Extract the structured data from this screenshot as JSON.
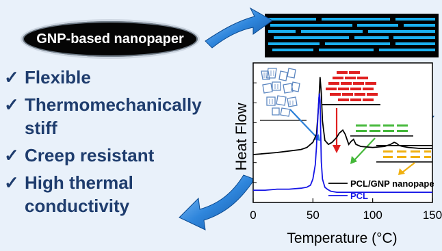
{
  "banner": {
    "title": "GNP-based nanopaper"
  },
  "features": [
    {
      "check_icon": "check-icon",
      "text": "Flexible"
    },
    {
      "check_icon": "check-icon",
      "text": "Thermomechanically\nstiff"
    },
    {
      "check_icon": "check-icon",
      "text": "Creep resistant"
    },
    {
      "check_icon": "check-icon",
      "text": "High thermal\nconductivity"
    }
  ],
  "colors": {
    "text_blue": "#1f3d6e",
    "arrow_blue": "#2a7fd8",
    "pcl_line": "#1515e6",
    "composite_line": "#000000",
    "annotation_red": "#e02020",
    "annotation_green": "#45b83a",
    "annotation_orange": "#f0b010"
  },
  "chart_data": {
    "type": "line",
    "xlabel": "Temperature (°C)",
    "ylabel": "Heat Flow",
    "xlim": [
      0,
      150
    ],
    "x_ticks": [
      0,
      50,
      100,
      150
    ],
    "y_ticks_shown": false,
    "legend_placement": "bottom-right",
    "series": [
      {
        "name": "PCL/GNP nanopape",
        "color": "#000000",
        "x": [
          0,
          10,
          20,
          30,
          40,
          45,
          50,
          53,
          55,
          56,
          57,
          58,
          60,
          63,
          66,
          70,
          72,
          75,
          77,
          80,
          82,
          84,
          86,
          90,
          100,
          110,
          115,
          118,
          120,
          122,
          125,
          130,
          140,
          150
        ],
        "y": [
          0.02,
          0.03,
          0.04,
          0.055,
          0.07,
          0.09,
          0.14,
          0.22,
          0.55,
          0.78,
          0.62,
          0.35,
          0.16,
          0.12,
          0.14,
          0.19,
          0.23,
          0.26,
          0.22,
          0.12,
          0.15,
          0.17,
          0.12,
          0.1,
          0.09,
          0.1,
          0.12,
          0.14,
          0.13,
          0.11,
          0.1,
          0.09,
          0.08,
          0.08
        ]
      },
      {
        "name": "PCL",
        "color": "#1515e6",
        "x": [
          0,
          10,
          20,
          30,
          40,
          45,
          48,
          50,
          52,
          53,
          54,
          55,
          55.5,
          56,
          56.5,
          57,
          58,
          60,
          62,
          65,
          70,
          80,
          100,
          120,
          150
        ],
        "y": [
          -0.33,
          -0.33,
          -0.32,
          -0.32,
          -0.31,
          -0.3,
          -0.28,
          -0.22,
          -0.08,
          0.1,
          0.35,
          0.58,
          0.62,
          0.55,
          0.25,
          -0.05,
          -0.22,
          -0.3,
          -0.32,
          -0.34,
          -0.35,
          -0.35,
          -0.35,
          -0.35,
          -0.35
        ]
      }
    ]
  }
}
